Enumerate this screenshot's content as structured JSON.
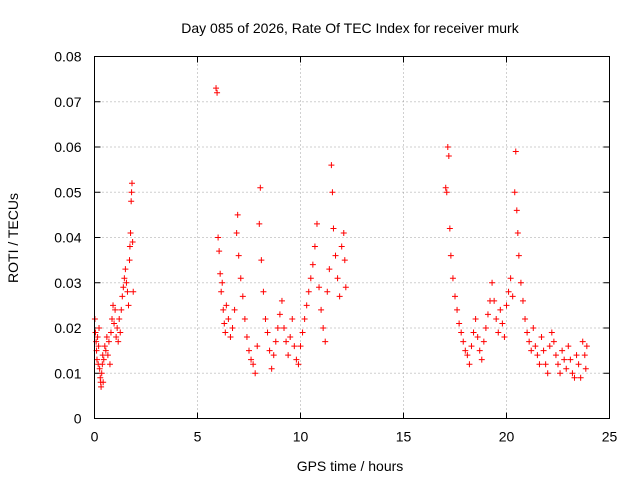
{
  "chart_data": {
    "type": "scatter",
    "title": "Day 085 of 2026, Rate Of TEC Index for receiver murk",
    "xlabel": "GPS time / hours",
    "ylabel": "ROTI / TECUs",
    "xlim": [
      0,
      25
    ],
    "ylim": [
      0,
      0.08
    ],
    "xticks": [
      0,
      5,
      10,
      15,
      20,
      25
    ],
    "yticks": [
      0,
      0.01,
      0.02,
      0.03,
      0.04,
      0.05,
      0.06,
      0.07,
      0.08
    ],
    "grid": true,
    "marker": "plus",
    "color": "#ff0000",
    "series": [
      {
        "points": [
          [
            0.02,
            0.022
          ],
          [
            0.05,
            0.019
          ],
          [
            0.08,
            0.017
          ],
          [
            0.1,
            0.015
          ],
          [
            0.12,
            0.013
          ],
          [
            0.15,
            0.018
          ],
          [
            0.18,
            0.012
          ],
          [
            0.2,
            0.016
          ],
          [
            0.22,
            0.02
          ],
          [
            0.25,
            0.011
          ],
          [
            0.28,
            0.009
          ],
          [
            0.3,
            0.008
          ],
          [
            0.32,
            0.007
          ],
          [
            0.35,
            0.01
          ],
          [
            0.38,
            0.012
          ],
          [
            0.4,
            0.014
          ],
          [
            0.42,
            0.008
          ],
          [
            0.45,
            0.013
          ],
          [
            0.5,
            0.016
          ],
          [
            0.55,
            0.015
          ],
          [
            0.6,
            0.018
          ],
          [
            0.65,
            0.014
          ],
          [
            0.7,
            0.017
          ],
          [
            0.75,
            0.012
          ],
          [
            0.8,
            0.019
          ],
          [
            0.85,
            0.022
          ],
          [
            0.9,
            0.025
          ],
          [
            0.95,
            0.021
          ],
          [
            1.0,
            0.024
          ],
          [
            1.05,
            0.018
          ],
          [
            1.1,
            0.02
          ],
          [
            1.15,
            0.017
          ],
          [
            1.2,
            0.022
          ],
          [
            1.25,
            0.019
          ],
          [
            1.3,
            0.024
          ],
          [
            1.35,
            0.027
          ],
          [
            1.4,
            0.029
          ],
          [
            1.45,
            0.031
          ],
          [
            1.5,
            0.033
          ],
          [
            1.55,
            0.03
          ],
          [
            1.6,
            0.028
          ],
          [
            1.65,
            0.025
          ],
          [
            1.7,
            0.035
          ],
          [
            1.72,
            0.038
          ],
          [
            1.75,
            0.041
          ],
          [
            1.78,
            0.048
          ],
          [
            1.8,
            0.05
          ],
          [
            1.82,
            0.052
          ],
          [
            1.85,
            0.039
          ],
          [
            1.88,
            0.028
          ],
          [
            5.9,
            0.073
          ],
          [
            5.95,
            0.072
          ],
          [
            6.0,
            0.04
          ],
          [
            6.05,
            0.037
          ],
          [
            6.1,
            0.032
          ],
          [
            6.15,
            0.028
          ],
          [
            6.2,
            0.03
          ],
          [
            6.25,
            0.024
          ],
          [
            6.3,
            0.021
          ],
          [
            6.35,
            0.019
          ],
          [
            6.4,
            0.025
          ],
          [
            6.5,
            0.022
          ],
          [
            6.6,
            0.018
          ],
          [
            6.7,
            0.02
          ],
          [
            6.8,
            0.024
          ],
          [
            6.9,
            0.041
          ],
          [
            6.95,
            0.045
          ],
          [
            7.0,
            0.036
          ],
          [
            7.1,
            0.031
          ],
          [
            7.2,
            0.027
          ],
          [
            7.3,
            0.022
          ],
          [
            7.4,
            0.018
          ],
          [
            7.5,
            0.015
          ],
          [
            7.6,
            0.013
          ],
          [
            7.7,
            0.012
          ],
          [
            7.8,
            0.01
          ],
          [
            7.9,
            0.016
          ],
          [
            8.0,
            0.043
          ],
          [
            8.05,
            0.051
          ],
          [
            8.1,
            0.035
          ],
          [
            8.2,
            0.028
          ],
          [
            8.3,
            0.022
          ],
          [
            8.4,
            0.019
          ],
          [
            8.5,
            0.015
          ],
          [
            8.6,
            0.011
          ],
          [
            8.7,
            0.014
          ],
          [
            8.8,
            0.017
          ],
          [
            8.9,
            0.02
          ],
          [
            9.0,
            0.023
          ],
          [
            9.1,
            0.026
          ],
          [
            9.2,
            0.02
          ],
          [
            9.3,
            0.017
          ],
          [
            9.4,
            0.014
          ],
          [
            9.5,
            0.018
          ],
          [
            9.6,
            0.022
          ],
          [
            9.7,
            0.016
          ],
          [
            9.8,
            0.013
          ],
          [
            9.9,
            0.012
          ],
          [
            10.0,
            0.016
          ],
          [
            10.1,
            0.019
          ],
          [
            10.2,
            0.022
          ],
          [
            10.3,
            0.025
          ],
          [
            10.4,
            0.028
          ],
          [
            10.5,
            0.031
          ],
          [
            10.6,
            0.034
          ],
          [
            10.7,
            0.038
          ],
          [
            10.8,
            0.043
          ],
          [
            10.9,
            0.029
          ],
          [
            11.0,
            0.024
          ],
          [
            11.1,
            0.02
          ],
          [
            11.2,
            0.017
          ],
          [
            11.3,
            0.028
          ],
          [
            11.4,
            0.033
          ],
          [
            11.5,
            0.056
          ],
          [
            11.55,
            0.05
          ],
          [
            11.6,
            0.042
          ],
          [
            11.7,
            0.036
          ],
          [
            11.8,
            0.031
          ],
          [
            11.9,
            0.027
          ],
          [
            12.0,
            0.038
          ],
          [
            12.1,
            0.041
          ],
          [
            12.15,
            0.035
          ],
          [
            12.2,
            0.029
          ],
          [
            17.05,
            0.051
          ],
          [
            17.1,
            0.05
          ],
          [
            17.15,
            0.06
          ],
          [
            17.2,
            0.058
          ],
          [
            17.25,
            0.042
          ],
          [
            17.3,
            0.036
          ],
          [
            17.4,
            0.031
          ],
          [
            17.5,
            0.027
          ],
          [
            17.6,
            0.024
          ],
          [
            17.7,
            0.021
          ],
          [
            17.8,
            0.019
          ],
          [
            17.9,
            0.017
          ],
          [
            18.0,
            0.015
          ],
          [
            18.1,
            0.014
          ],
          [
            18.2,
            0.012
          ],
          [
            18.3,
            0.016
          ],
          [
            18.4,
            0.019
          ],
          [
            18.5,
            0.022
          ],
          [
            18.6,
            0.018
          ],
          [
            18.7,
            0.015
          ],
          [
            18.8,
            0.013
          ],
          [
            18.9,
            0.017
          ],
          [
            19.0,
            0.02
          ],
          [
            19.1,
            0.023
          ],
          [
            19.2,
            0.026
          ],
          [
            19.3,
            0.03
          ],
          [
            19.4,
            0.026
          ],
          [
            19.5,
            0.022
          ],
          [
            19.6,
            0.019
          ],
          [
            19.7,
            0.024
          ],
          [
            19.8,
            0.021
          ],
          [
            19.9,
            0.018
          ],
          [
            20.0,
            0.025
          ],
          [
            20.1,
            0.028
          ],
          [
            20.2,
            0.031
          ],
          [
            20.3,
            0.027
          ],
          [
            20.4,
            0.05
          ],
          [
            20.45,
            0.059
          ],
          [
            20.5,
            0.046
          ],
          [
            20.55,
            0.041
          ],
          [
            20.6,
            0.036
          ],
          [
            20.7,
            0.03
          ],
          [
            20.8,
            0.026
          ],
          [
            20.9,
            0.022
          ],
          [
            21.0,
            0.019
          ],
          [
            21.1,
            0.017
          ],
          [
            21.2,
            0.015
          ],
          [
            21.3,
            0.02
          ],
          [
            21.4,
            0.016
          ],
          [
            21.5,
            0.014
          ],
          [
            21.6,
            0.012
          ],
          [
            21.7,
            0.018
          ],
          [
            21.8,
            0.015
          ],
          [
            21.9,
            0.012
          ],
          [
            22.0,
            0.01
          ],
          [
            22.1,
            0.016
          ],
          [
            22.2,
            0.019
          ],
          [
            22.3,
            0.017
          ],
          [
            22.4,
            0.014
          ],
          [
            22.5,
            0.012
          ],
          [
            22.6,
            0.01
          ],
          [
            22.7,
            0.015
          ],
          [
            22.8,
            0.013
          ],
          [
            22.9,
            0.011
          ],
          [
            23.0,
            0.016
          ],
          [
            23.1,
            0.013
          ],
          [
            23.2,
            0.01
          ],
          [
            23.3,
            0.009
          ],
          [
            23.4,
            0.014
          ],
          [
            23.5,
            0.012
          ],
          [
            23.6,
            0.009
          ],
          [
            23.7,
            0.017
          ],
          [
            23.8,
            0.014
          ],
          [
            23.85,
            0.011
          ],
          [
            23.9,
            0.016
          ]
        ]
      }
    ]
  }
}
